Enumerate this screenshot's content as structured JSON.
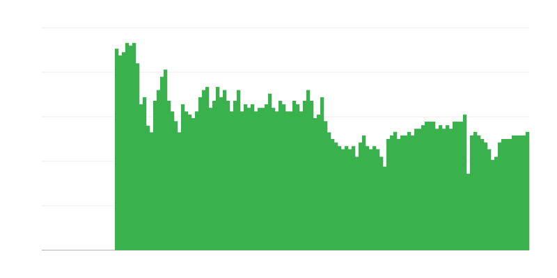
{
  "chart_data": {
    "type": "bar",
    "color": "#39b14c",
    "grid": true,
    "xlim": [
      0,
      140
    ],
    "ylim": [
      0,
      5
    ],
    "yticks": [
      0,
      1,
      2,
      3,
      4,
      5
    ],
    "x": [
      21,
      22,
      23,
      24,
      25,
      26,
      27,
      28,
      29,
      30,
      31,
      32,
      33,
      34,
      35,
      36,
      37,
      38,
      39,
      40,
      41,
      42,
      43,
      44,
      45,
      46,
      47,
      48,
      49,
      50,
      51,
      52,
      53,
      54,
      55,
      56,
      57,
      58,
      59,
      60,
      61,
      62,
      63,
      64,
      65,
      66,
      67,
      68,
      69,
      70,
      71,
      72,
      73,
      74,
      75,
      76,
      77,
      78,
      79,
      80,
      81,
      82,
      83,
      84,
      85,
      86,
      87,
      88,
      89,
      90,
      91,
      92,
      93,
      94,
      95,
      96,
      97,
      98,
      99,
      100,
      101,
      102,
      103,
      104,
      105,
      106,
      107,
      108,
      109,
      110,
      111,
      112,
      113,
      114,
      115,
      116,
      117,
      118,
      119,
      120,
      121,
      122,
      123,
      124,
      125,
      126,
      127,
      128,
      129,
      130,
      131,
      132,
      133,
      134,
      135,
      136,
      137,
      138,
      139
    ],
    "values": [
      4.53,
      4.38,
      4.45,
      4.66,
      4.6,
      4.66,
      4.2,
      3.28,
      3.44,
      2.8,
      2.65,
      3.36,
      3.6,
      3.9,
      4.06,
      3.36,
      3.12,
      2.9,
      2.65,
      3.28,
      3.12,
      3.05,
      2.97,
      3.12,
      3.44,
      3.6,
      3.67,
      3.2,
      3.36,
      3.67,
      3.44,
      3.6,
      3.36,
      3.12,
      3.36,
      3.6,
      3.12,
      3.28,
      3.2,
      3.28,
      3.12,
      3.2,
      3.2,
      3.28,
      3.52,
      3.2,
      3.12,
      3.36,
      3.28,
      3.12,
      3.12,
      3.36,
      3.28,
      3.12,
      3.36,
      3.6,
      3.36,
      2.97,
      3.05,
      3.44,
      2.9,
      2.65,
      2.5,
      2.42,
      2.34,
      2.27,
      2.34,
      2.27,
      2.34,
      2.1,
      2.42,
      2.58,
      2.34,
      2.27,
      2.34,
      2.27,
      2.1,
      1.88,
      2.5,
      2.58,
      2.66,
      2.5,
      2.58,
      2.58,
      2.66,
      2.58,
      2.73,
      2.73,
      2.81,
      2.89,
      2.89,
      2.89,
      2.73,
      2.81,
      2.73,
      2.81,
      2.73,
      2.89,
      2.89,
      2.89,
      3.05,
      1.72,
      2.58,
      2.66,
      2.58,
      2.5,
      2.42,
      2.27,
      2.03,
      2.1,
      2.42,
      2.5,
      2.5,
      2.5,
      2.58,
      2.58,
      2.58,
      2.58,
      2.66
    ]
  }
}
